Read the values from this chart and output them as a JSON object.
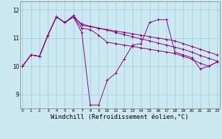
{
  "background_color": "#cce8f0",
  "grid_color": "#99ccdd",
  "line_color": "#880088",
  "xlabel": "Windchill (Refroidissement éolien,°C)",
  "xlabel_fontsize": 6.5,
  "ylim": [
    8.5,
    12.3
  ],
  "xlim": [
    -0.3,
    23.3
  ],
  "series1_y": [
    10.0,
    10.4,
    10.35,
    11.1,
    11.75,
    11.55,
    11.8,
    11.45,
    11.4,
    11.35,
    11.3,
    11.25,
    11.2,
    11.15,
    11.1,
    11.05,
    11.0,
    10.95,
    10.9,
    10.8,
    10.7,
    10.6,
    10.5,
    10.4
  ],
  "series2_y": [
    10.0,
    10.4,
    10.35,
    11.1,
    11.75,
    11.55,
    11.75,
    11.2,
    8.62,
    8.62,
    9.5,
    9.75,
    10.25,
    10.75,
    10.8,
    11.55,
    11.65,
    11.65,
    10.5,
    10.4,
    10.3,
    9.9,
    10.0,
    10.15
  ],
  "series3_y": [
    10.0,
    10.4,
    10.35,
    11.1,
    11.75,
    11.55,
    11.75,
    11.35,
    11.3,
    11.1,
    10.85,
    10.8,
    10.75,
    10.7,
    10.65,
    10.6,
    10.55,
    10.5,
    10.45,
    10.35,
    10.25,
    10.1,
    10.0,
    10.15
  ],
  "series4_y": [
    10.0,
    10.4,
    10.35,
    11.1,
    11.75,
    11.55,
    11.75,
    11.5,
    11.42,
    11.35,
    11.28,
    11.2,
    11.12,
    11.05,
    10.97,
    10.9,
    10.82,
    10.75,
    10.67,
    10.6,
    10.5,
    10.38,
    10.28,
    10.18
  ]
}
